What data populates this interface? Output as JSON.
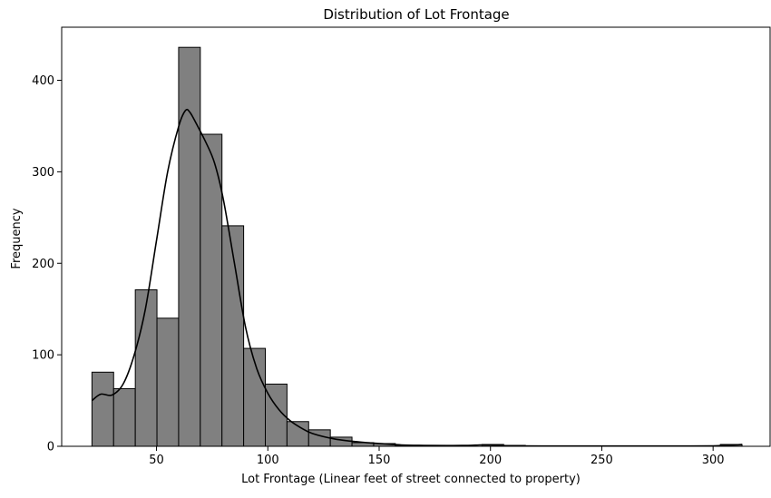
{
  "chart_data": {
    "type": "histogram",
    "title": "Distribution of Lot Frontage",
    "xlabel": "Lot Frontage (Linear feet of street connected to property)",
    "ylabel": "Frequency",
    "xlim": [
      7.4,
      325.6
    ],
    "ylim": [
      0,
      458
    ],
    "xticks": [
      50,
      100,
      150,
      200,
      250,
      300
    ],
    "yticks": [
      0,
      100,
      200,
      300,
      400
    ],
    "grid": false,
    "bar_color": "#808080",
    "edge_color": "#000000",
    "line_color": "#000000",
    "bins": {
      "start": 21,
      "end": 313,
      "counts": [
        81,
        63,
        171,
        140,
        436,
        341,
        241,
        107,
        68,
        27,
        18,
        10,
        4,
        3,
        1,
        1,
        0,
        0,
        2,
        1,
        0,
        0,
        0,
        0,
        0,
        0,
        0,
        0,
        0,
        2
      ]
    },
    "kde": {
      "x": [
        21,
        25,
        30,
        35,
        40,
        45,
        50,
        55,
        60,
        63,
        65,
        68,
        72,
        76,
        80,
        85,
        90,
        95,
        100,
        105,
        110,
        115,
        120,
        130,
        140,
        150,
        160,
        170,
        180,
        190,
        195,
        200,
        205,
        210,
        230,
        250,
        270,
        290,
        300,
        305,
        310,
        313
      ],
      "y": [
        50,
        57,
        56,
        68,
        100,
        150,
        225,
        300,
        350,
        367,
        365,
        352,
        333,
        310,
        270,
        200,
        130,
        85,
        58,
        40,
        28,
        20,
        14,
        8,
        5,
        3,
        1.5,
        1,
        0.8,
        1,
        1.5,
        1.5,
        1,
        0.5,
        0.3,
        0.3,
        0.3,
        0.3,
        0.5,
        1,
        1.5,
        2
      ]
    }
  }
}
